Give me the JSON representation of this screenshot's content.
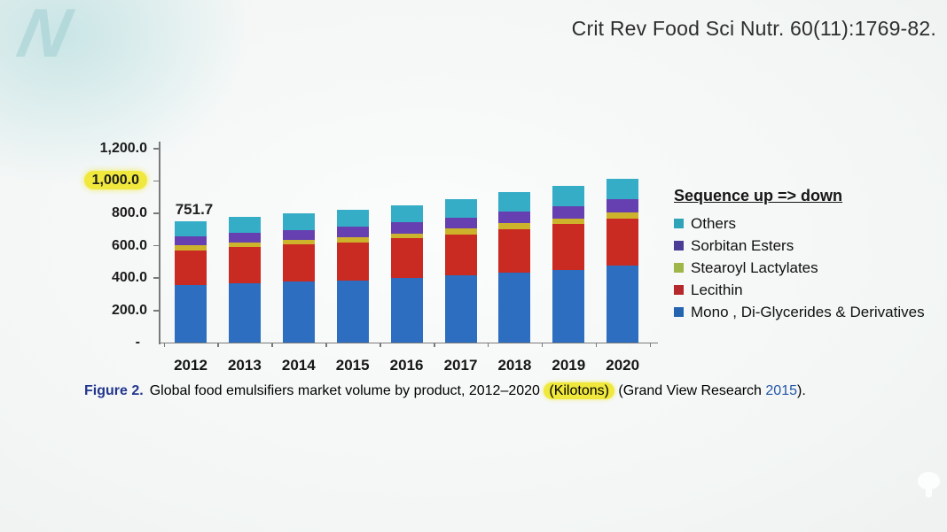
{
  "page": {
    "logo_letter": "N",
    "citation": "Crit Rev Food Sci Nutr. 60(11):1769-82."
  },
  "caption": {
    "figure_label": "Figure 2.",
    "body": "Global food emulsifiers market volume by product, 2012–2020 ",
    "kilotons": "(Kilotons)",
    "source_pre": " (Grand View Research ",
    "source_year": "2015",
    "source_end": ")."
  },
  "chart_data": {
    "type": "bar",
    "stacked": true,
    "title": "",
    "xlabel": "",
    "ylabel": "",
    "legend_title": "Sequence up => down",
    "legend_position": "right",
    "grid": false,
    "ylim": [
      0,
      1260
    ],
    "categories": [
      "2012",
      "2013",
      "2014",
      "2015",
      "2016",
      "2017",
      "2018",
      "2019",
      "2020"
    ],
    "yticks": [
      1200,
      1000,
      800,
      600,
      400,
      200
    ],
    "ytick_labels": [
      "1,200.0",
      "1,000.0",
      "800.0",
      "600.0",
      "400.0",
      "200.0"
    ],
    "zero_label": "-",
    "series": [
      {
        "key": "mono-di-glycerides",
        "name": "Mono , Di-Glycerides & Derivatives",
        "color": "#2d6ec1",
        "legend_color": "#2565b0",
        "values": [
          355,
          368,
          378,
          385,
          400,
          415,
          435,
          452,
          475
        ]
      },
      {
        "key": "lecithin",
        "name": "Lecithin",
        "color": "#c92a21",
        "legend_color": "#b5282b",
        "values": [
          218,
          222,
          228,
          236,
          245,
          256,
          268,
          280,
          292
        ]
      },
      {
        "key": "stearoyl-lactylates",
        "name": "Stearoyl Lactylates",
        "color": "#cdb32b",
        "legend_color": "#9eb748",
        "values": [
          28,
          29,
          30,
          31,
          32,
          34,
          36,
          37,
          39
        ]
      },
      {
        "key": "sorbitan-esters",
        "name": "Sorbitan Esters",
        "color": "#6640b0",
        "legend_color": "#4b3d96",
        "values": [
          58,
          60,
          62,
          64,
          66,
          69,
          72,
          75,
          79
        ]
      },
      {
        "key": "others",
        "name": "Others",
        "color": "#36adc6",
        "legend_color": "#2fa3b8",
        "values": [
          92.7,
          99,
          102,
          104,
          109,
          114,
          119,
          124,
          131
        ]
      }
    ],
    "annotations": {
      "bar_2012_total_label": "751.7",
      "highlighted_ytick": "1,000.0",
      "highlight_color": "#f0e83c"
    }
  }
}
